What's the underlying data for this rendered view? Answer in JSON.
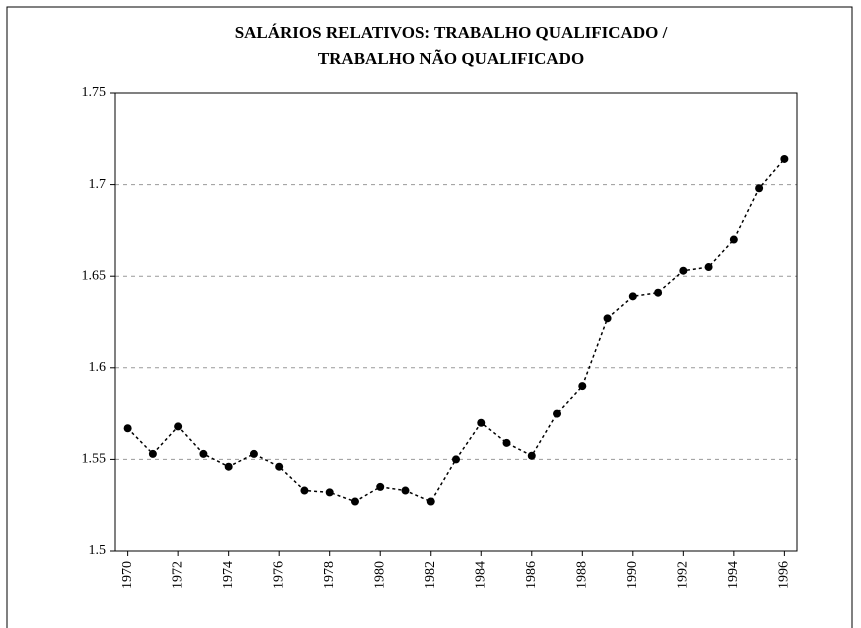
{
  "chart_data": {
    "type": "line",
    "title": [
      "SALÁRIOS RELATIVOS: TRABALHO QUALIFICADO /",
      "TRABALHO NÃO QUALIFICADO"
    ],
    "x": [
      1970,
      1971,
      1972,
      1973,
      1974,
      1975,
      1976,
      1977,
      1978,
      1979,
      1980,
      1981,
      1982,
      1983,
      1984,
      1985,
      1986,
      1987,
      1988,
      1989,
      1990,
      1991,
      1992,
      1993,
      1994,
      1995,
      1996
    ],
    "series": [
      {
        "color": "#000000",
        "values": [
          1.567,
          1.553,
          1.568,
          1.553,
          1.546,
          1.553,
          1.546,
          1.533,
          1.532,
          1.527,
          1.535,
          1.533,
          1.527,
          1.55,
          1.57,
          1.559,
          1.552,
          1.575,
          1.59,
          1.627,
          1.639,
          1.641,
          1.653,
          1.655,
          1.67,
          1.698,
          1.714
        ]
      }
    ],
    "xlim": [
      1969.5,
      1996.5
    ],
    "xticks": [
      1970,
      1972,
      1974,
      1976,
      1978,
      1980,
      1982,
      1984,
      1986,
      1988,
      1990,
      1992,
      1994,
      1996
    ],
    "ylim": [
      1.5,
      1.75
    ],
    "yticks": [
      1.5,
      1.55,
      1.6,
      1.65,
      1.7,
      1.75
    ],
    "grid": true
  }
}
